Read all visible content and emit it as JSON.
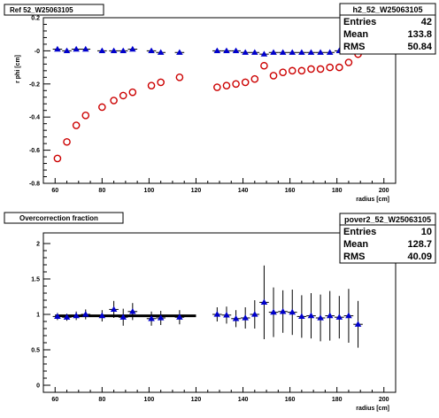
{
  "chart_data": [
    {
      "type": "scatter",
      "title": "Ref 52_W25063105",
      "xlabel": "radius [cm]",
      "ylabel": "r phi [cm]",
      "xlim": [
        55,
        205
      ],
      "ylim": [
        -0.8,
        0.2
      ],
      "x_ticks": [
        "60",
        "80",
        "100",
        "120",
        "140",
        "160",
        "180",
        "200"
      ],
      "y_ticks": [
        "-0.8",
        "-0.6",
        "-0.4",
        "-0.2",
        "-0",
        "0.2"
      ],
      "stats": {
        "name": "h2_52_W25063105",
        "rows": [
          {
            "label": "Entries",
            "value": "42"
          },
          {
            "label": "Mean",
            "value": "133.8"
          },
          {
            "label": "RMS",
            "value": "50.84"
          }
        ]
      },
      "series": [
        {
          "marker": "triangle",
          "color": "#0000cc",
          "x": [
            61,
            65,
            69,
            73,
            80,
            85,
            89,
            93,
            101,
            105,
            113,
            129,
            133,
            137,
            141,
            145,
            149,
            153,
            157,
            161,
            165,
            169,
            173,
            177,
            181,
            185,
            189
          ],
          "y": [
            0.01,
            0.0,
            0.01,
            0.01,
            0.0,
            0.0,
            0.0,
            0.01,
            0.0,
            -0.01,
            -0.01,
            0.0,
            0.0,
            0.0,
            -0.01,
            -0.01,
            -0.02,
            -0.01,
            -0.01,
            -0.01,
            -0.01,
            -0.01,
            -0.01,
            -0.01,
            0.0,
            0.01,
            0.08
          ],
          "ex": 2
        },
        {
          "marker": "open-circle",
          "color": "#cc0000",
          "x": [
            61,
            65,
            69,
            73,
            80,
            85,
            89,
            93,
            101,
            105,
            113,
            129,
            133,
            137,
            141,
            145,
            149,
            153,
            157,
            161,
            165,
            169,
            173,
            177,
            181,
            185,
            189
          ],
          "y": [
            -0.65,
            -0.55,
            -0.45,
            -0.39,
            -0.34,
            -0.3,
            -0.27,
            -0.25,
            -0.21,
            -0.19,
            -0.16,
            -0.22,
            -0.21,
            -0.2,
            -0.19,
            -0.17,
            -0.09,
            -0.15,
            -0.13,
            -0.12,
            -0.12,
            -0.11,
            -0.11,
            -0.1,
            -0.1,
            -0.07,
            -0.02
          ]
        }
      ]
    },
    {
      "type": "scatter",
      "title": "Overcorrection fraction",
      "xlabel": "radius [cm]",
      "ylabel": "",
      "xlim": [
        55,
        205
      ],
      "ylim": [
        -0.1,
        2.15
      ],
      "x_ticks": [
        "60",
        "80",
        "100",
        "120",
        "140",
        "160",
        "180",
        "200"
      ],
      "y_ticks": [
        "0",
        "0.5",
        "1",
        "1.5",
        "2"
      ],
      "stats": {
        "name": "pover2_52_W25063105",
        "rows": [
          {
            "label": "Entries",
            "value": "10"
          },
          {
            "label": "Mean",
            "value": "128.7"
          },
          {
            "label": "RMS",
            "value": "40.09"
          }
        ]
      },
      "fit_line": {
        "x1": 60,
        "x2": 120,
        "y": 0.98,
        "color": "#000000"
      },
      "series": [
        {
          "marker": "triangle",
          "color": "#0000cc",
          "x": [
            61,
            65,
            69,
            73,
            80,
            85,
            89,
            93,
            101,
            105,
            113,
            129,
            133,
            137,
            141,
            145,
            149,
            153,
            157,
            161,
            165,
            169,
            173,
            177,
            181,
            185,
            189
          ],
          "y": [
            0.97,
            0.96,
            0.98,
            1.0,
            0.98,
            1.07,
            0.96,
            1.04,
            0.94,
            0.95,
            0.96,
            1.0,
            0.99,
            0.94,
            0.95,
            1.0,
            1.17,
            1.03,
            1.04,
            1.03,
            0.97,
            0.98,
            0.95,
            0.98,
            0.96,
            0.98,
            0.86
          ],
          "ey": [
            0.05,
            0.05,
            0.06,
            0.07,
            0.08,
            0.12,
            0.12,
            0.12,
            0.1,
            0.1,
            0.1,
            0.1,
            0.12,
            0.12,
            0.15,
            0.2,
            0.52,
            0.35,
            0.3,
            0.32,
            0.3,
            0.32,
            0.33,
            0.35,
            0.3,
            0.38,
            0.33
          ],
          "ex": 2
        }
      ]
    }
  ]
}
